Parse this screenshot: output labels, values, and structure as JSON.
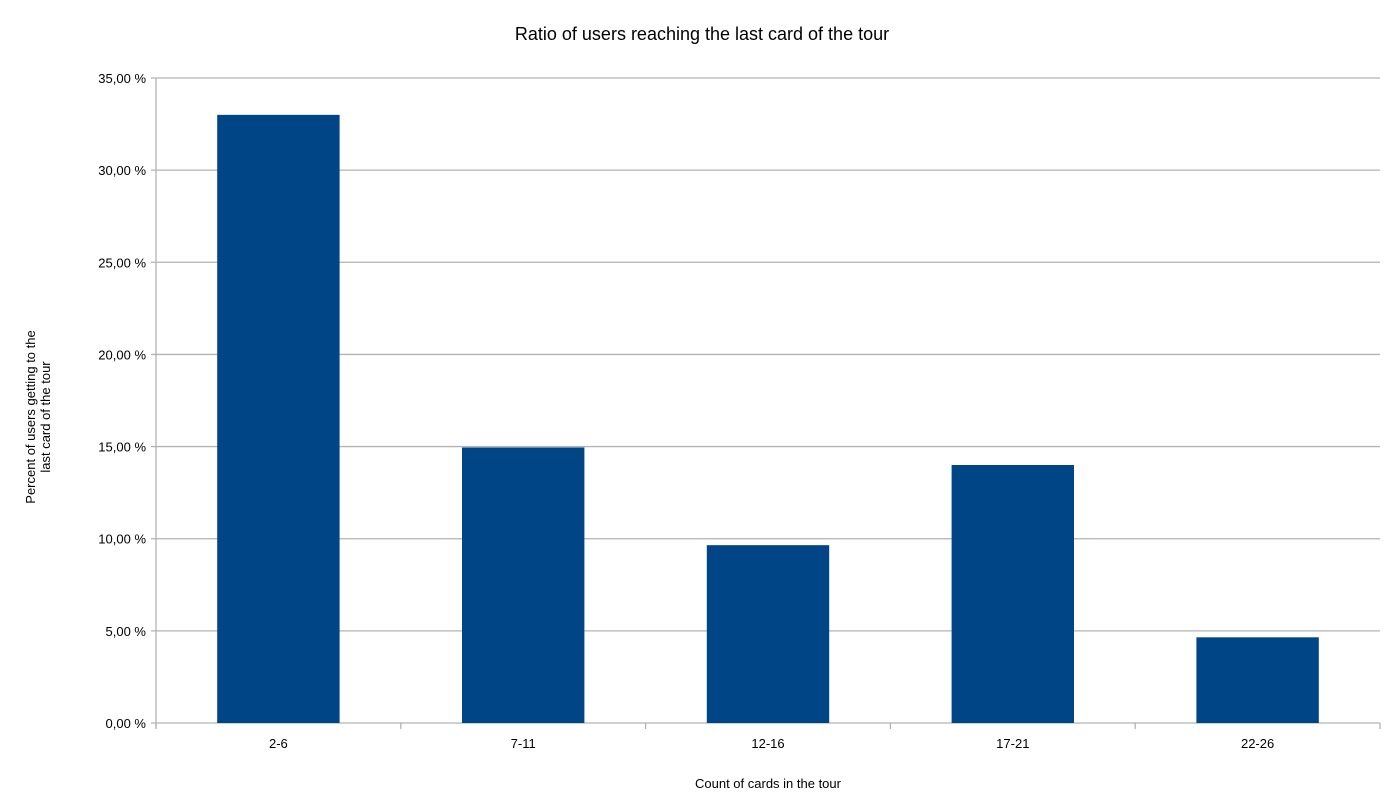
{
  "chart_data": {
    "type": "bar",
    "title": "Ratio of users reaching the last card of the tour",
    "xlabel": "Count of cards in the tour",
    "ylabel_lines": [
      "Percent of users getting to the",
      "last card of the tour"
    ],
    "categories": [
      "2-6",
      "7-11",
      "12-16",
      "17-21",
      "22-26"
    ],
    "values": [
      33.0,
      14.95,
      9.65,
      14.0,
      4.65
    ],
    "ylim": [
      0,
      35
    ],
    "yticks": [
      0,
      5,
      10,
      15,
      20,
      25,
      30,
      35
    ],
    "ytick_labels": [
      "0,00 %",
      "5,00 %",
      "10,00 %",
      "15,00 %",
      "20,00 %",
      "25,00 %",
      "30,00 %",
      "35,00 %"
    ],
    "grid": true,
    "bar_color": "#004586",
    "grid_color": "#b3b3b3"
  }
}
